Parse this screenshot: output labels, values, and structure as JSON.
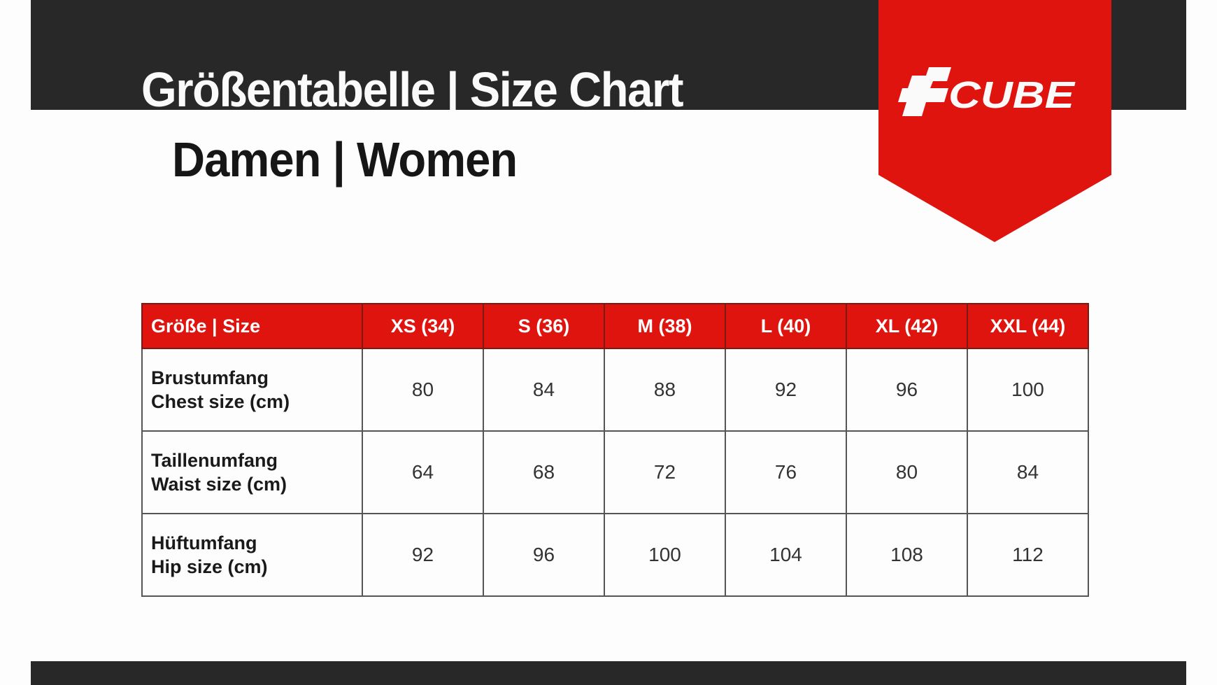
{
  "header": {
    "title": "Größentabelle | Size Chart",
    "subtitle": "Damen | Women",
    "logo_text": "CUBE",
    "brand_color": "#e0140f",
    "dark_color": "#282828"
  },
  "table": {
    "columns": [
      "Größe | Size",
      "XS (34)",
      "S (36)",
      "M (38)",
      "L (40)",
      "XL (42)",
      "XXL (44)"
    ],
    "rows": [
      {
        "label_de": "Brustumfang",
        "label_en": "Chest size (cm)",
        "values": [
          "80",
          "84",
          "88",
          "92",
          "96",
          "100"
        ]
      },
      {
        "label_de": "Taillenumfang",
        "label_en": "Waist size (cm)",
        "values": [
          "64",
          "68",
          "72",
          "76",
          "80",
          "84"
        ]
      },
      {
        "label_de": "Hüftumfang",
        "label_en": "Hip size (cm)",
        "values": [
          "92",
          "96",
          "100",
          "104",
          "108",
          "112"
        ]
      }
    ]
  }
}
